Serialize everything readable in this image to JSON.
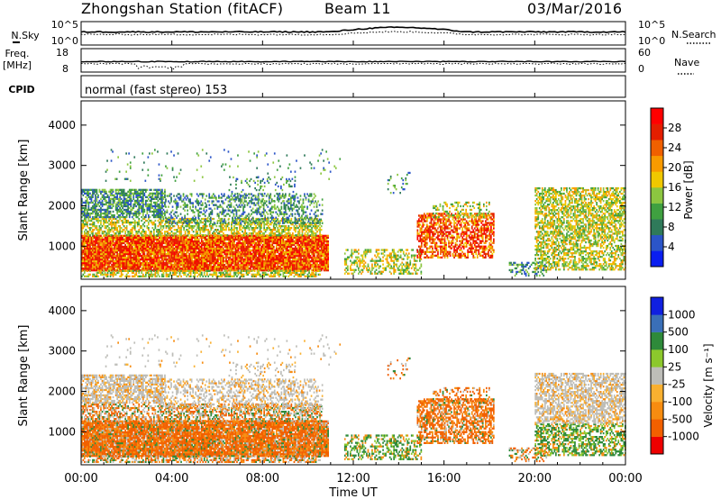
{
  "header": {
    "title": "Zhongshan Station (fitACF)",
    "beam": "Beam 11",
    "date": "03/Mar/2016"
  },
  "strips": {
    "nsky_label": "N.Sky",
    "nsearch_label": "N.Search",
    "noise_ticks": [
      "10^5",
      "10^0"
    ],
    "freq_label": "Freq.",
    "freq_unit": "[MHz]",
    "freq_ticks": [
      "18",
      "8"
    ],
    "nave_label": "Nave",
    "nave_ticks": [
      "60",
      "0"
    ],
    "cpid_label": "CPID",
    "cpid_value": "normal (fast stereo) 153"
  },
  "colors": {
    "power": [
      "#0a1ef0",
      "#2b55c8",
      "#2f7a5a",
      "#3fa040",
      "#8cc640",
      "#f0c800",
      "#f89a00",
      "#f06000",
      "#e41e00",
      "#ff0000"
    ],
    "velocity": [
      "#ee0000",
      "#f26000",
      "#f78c10",
      "#f9b030",
      "#bdbdb8",
      "#8cc82c",
      "#2e8a3a",
      "#3a6fb8",
      "#1020e0"
    ]
  },
  "chart_data": [
    {
      "type": "heatmap",
      "name": "power",
      "ylabel": "Slant Range [km]",
      "yticks": [
        "4000",
        "3000",
        "2000",
        "1000"
      ],
      "ylim": [
        180,
        4600
      ],
      "colorbar_label": "Power [dB]",
      "colorbar_ticks": [
        "28",
        "24",
        "20",
        "16",
        "12",
        "8",
        "4"
      ],
      "colorbar_range": [
        0,
        32
      ]
    },
    {
      "type": "heatmap",
      "name": "velocity",
      "ylabel": "Slant Range [km]",
      "yticks": [
        "4000",
        "3000",
        "2000",
        "1000"
      ],
      "ylim": [
        180,
        4600
      ],
      "colorbar_label": "Velocity [m s⁻¹]",
      "colorbar_ticks": [
        "1000",
        "500",
        "100",
        "25",
        "-25",
        "-100",
        "-500",
        "-1000"
      ]
    }
  ],
  "time_axis": {
    "ticks": [
      "00:00",
      "04:00",
      "08:00",
      "12:00",
      "16:00",
      "20:00",
      "00:00"
    ],
    "xlabel": "Time UT"
  }
}
